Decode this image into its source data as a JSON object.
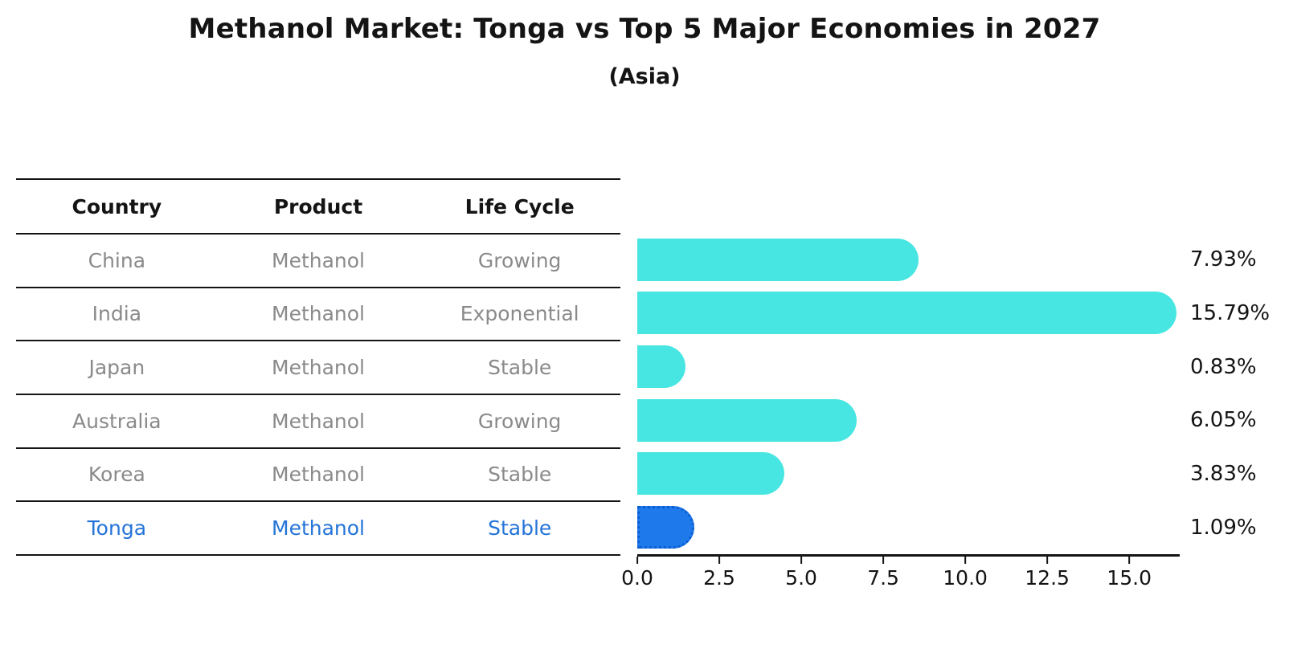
{
  "title": "Methanol Market: Tonga vs Top 5 Major Economies in 2027",
  "subtitle": "(Asia)",
  "table": {
    "headers": [
      "Country",
      "Product",
      "Life Cycle"
    ],
    "rows": [
      {
        "country": "China",
        "product": "Methanol",
        "life_cycle": "Growing"
      },
      {
        "country": "India",
        "product": "Methanol",
        "life_cycle": "Exponential"
      },
      {
        "country": "Japan",
        "product": "Methanol",
        "life_cycle": "Stable"
      },
      {
        "country": "Australia",
        "product": "Methanol",
        "life_cycle": "Growing"
      },
      {
        "country": "Korea",
        "product": "Methanol",
        "life_cycle": "Stable"
      },
      {
        "country": "Tonga",
        "product": "Methanol",
        "life_cycle": "Stable"
      }
    ],
    "highlight_row": "Tonga"
  },
  "chart_data": {
    "type": "bar",
    "orientation": "horizontal",
    "categories": [
      "China",
      "India",
      "Japan",
      "Australia",
      "Korea",
      "Tonga"
    ],
    "values": [
      7.93,
      15.79,
      0.83,
      6.05,
      3.83,
      1.09
    ],
    "value_labels": [
      "7.93%",
      "15.79%",
      "0.83%",
      "6.05%",
      "3.83%",
      "1.09%"
    ],
    "x_ticks": [
      0.0,
      2.5,
      5.0,
      7.5,
      10.0,
      12.5,
      15.0
    ],
    "x_tick_labels": [
      "0.0",
      "2.5",
      "5.0",
      "7.5",
      "10.0",
      "12.5",
      "15.0"
    ],
    "xlim": [
      0,
      16.54
    ],
    "grid": false,
    "legend": "none",
    "highlight_category": "Tonga",
    "colors": {
      "bar_default": "#48e6e2",
      "bar_highlight": "#1e7aeb",
      "bar_highlight_border": "#0e5ed2",
      "highlight_text": "#2474d8",
      "table_text": "#8a8a8a",
      "text": "#141414"
    }
  }
}
